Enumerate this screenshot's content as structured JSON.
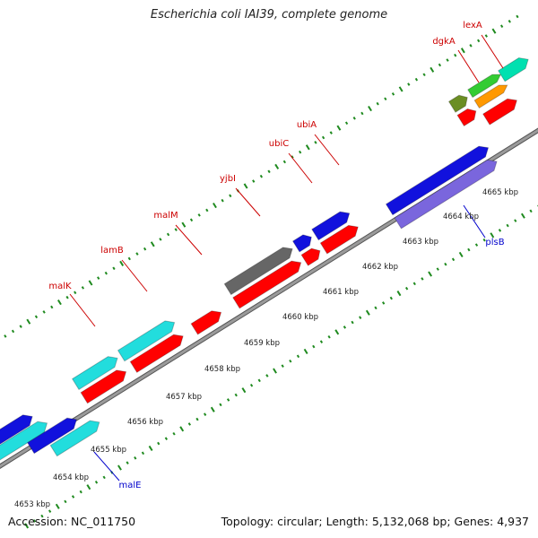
{
  "title": "Escherichia coli IAI39, complete genome",
  "footer": {
    "accession": "Accession: NC_011750",
    "summary": "Topology: circular; Length: 5,132,068 bp; Genes: 4,937"
  },
  "colors": {
    "backbone": "#9a9a9a",
    "tick": "#1f8a1f",
    "gene_label": "#cc0000",
    "rna_label": "#0000cc",
    "cds": "#ff0000",
    "gene_cyan": "#22dddd",
    "gene_blue": "#1111dd",
    "gene_gray": "#666666",
    "gene_lavender": "#7a66dd",
    "gene_olive": "#6b8e23",
    "gene_green": "#33cc33",
    "gene_orange": "#ff9900",
    "gene_teal": "#00e0b0"
  },
  "scale_labels": [
    "4653 kbp",
    "4654 kbp",
    "4655 kbp",
    "4656 kbp",
    "4657 kbp",
    "4658 kbp",
    "4659 kbp",
    "4660 kbp",
    "4661 kbp",
    "4662 kbp",
    "4663 kbp",
    "4664 kbp",
    "4665 kbp"
  ],
  "gene_labels": [
    "malK",
    "lamB",
    "malM",
    "yjbI",
    "ubiC",
    "ubiA",
    "dgkA",
    "lexA"
  ],
  "rna_labels": [
    "malE",
    "plsB"
  ]
}
